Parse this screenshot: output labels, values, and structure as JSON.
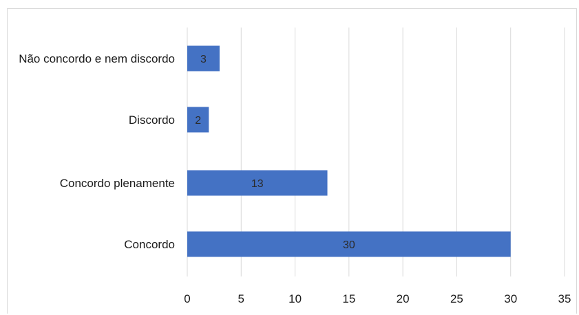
{
  "chart_data": {
    "type": "bar",
    "orientation": "horizontal",
    "title": "",
    "xlabel": "",
    "ylabel": "",
    "categories": [
      "Concordo",
      "Concordo plenamente",
      "Discordo",
      "Não concordo e nem discordo"
    ],
    "values": [
      30,
      13,
      2,
      3
    ],
    "xlim": [
      0,
      35
    ],
    "xticks": [
      0,
      5,
      10,
      15,
      20,
      25,
      30,
      35
    ],
    "grid": "vertical",
    "legend": "none",
    "data_labels": true,
    "bar_color": "#4472c4",
    "grid_color": "#d9d9d9"
  }
}
